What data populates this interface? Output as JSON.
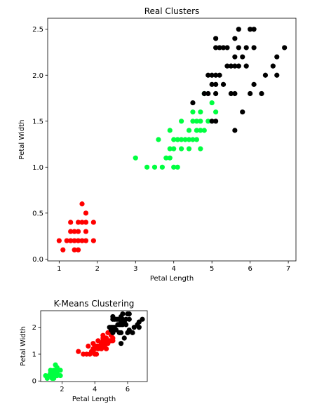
{
  "chart_data": [
    {
      "type": "scatter",
      "title": "Real Clusters",
      "xlabel": "Petal Length",
      "ylabel": "Petal Width",
      "xlim": [
        0.7,
        7.2
      ],
      "ylim": [
        -0.02,
        2.62
      ],
      "xticks": [
        1,
        2,
        3,
        4,
        5,
        6,
        7
      ],
      "xtick_labels": [
        "1",
        "2",
        "3",
        "4",
        "5",
        "6",
        "7"
      ],
      "yticks": [
        0.0,
        0.5,
        1.0,
        1.5,
        2.0,
        2.5
      ],
      "ytick_labels": [
        "0.0",
        "0.5",
        "1.0",
        "1.5",
        "2.0",
        "2.5"
      ],
      "grid": false,
      "series": [
        {
          "color": "#ff0000",
          "points": [
            [
              1.0,
              0.2
            ],
            [
              1.1,
              0.1
            ],
            [
              1.2,
              0.2
            ],
            [
              1.3,
              0.2
            ],
            [
              1.3,
              0.3
            ],
            [
              1.3,
              0.4
            ],
            [
              1.4,
              0.1
            ],
            [
              1.4,
              0.2
            ],
            [
              1.4,
              0.3
            ],
            [
              1.5,
              0.1
            ],
            [
              1.5,
              0.2
            ],
            [
              1.5,
              0.3
            ],
            [
              1.5,
              0.4
            ],
            [
              1.6,
              0.2
            ],
            [
              1.6,
              0.4
            ],
            [
              1.6,
              0.6
            ],
            [
              1.7,
              0.2
            ],
            [
              1.7,
              0.3
            ],
            [
              1.7,
              0.4
            ],
            [
              1.7,
              0.5
            ],
            [
              1.9,
              0.2
            ],
            [
              1.9,
              0.4
            ]
          ]
        },
        {
          "color": "#00ff40",
          "points": [
            [
              3.0,
              1.1
            ],
            [
              3.3,
              1.0
            ],
            [
              3.5,
              1.0
            ],
            [
              3.6,
              1.3
            ],
            [
              3.7,
              1.0
            ],
            [
              3.8,
              1.1
            ],
            [
              3.9,
              1.1
            ],
            [
              3.9,
              1.2
            ],
            [
              3.9,
              1.4
            ],
            [
              4.0,
              1.0
            ],
            [
              4.0,
              1.2
            ],
            [
              4.0,
              1.3
            ],
            [
              4.1,
              1.0
            ],
            [
              4.1,
              1.3
            ],
            [
              4.2,
              1.2
            ],
            [
              4.2,
              1.3
            ],
            [
              4.2,
              1.5
            ],
            [
              4.3,
              1.3
            ],
            [
              4.4,
              1.2
            ],
            [
              4.4,
              1.3
            ],
            [
              4.4,
              1.4
            ],
            [
              4.5,
              1.3
            ],
            [
              4.5,
              1.5
            ],
            [
              4.5,
              1.6
            ],
            [
              4.6,
              1.3
            ],
            [
              4.6,
              1.4
            ],
            [
              4.6,
              1.5
            ],
            [
              4.7,
              1.2
            ],
            [
              4.7,
              1.4
            ],
            [
              4.7,
              1.5
            ],
            [
              4.7,
              1.6
            ],
            [
              4.8,
              1.4
            ],
            [
              4.8,
              1.8
            ],
            [
              4.9,
              1.5
            ],
            [
              5.0,
              1.7
            ],
            [
              5.1,
              1.6
            ]
          ]
        },
        {
          "color": "#000000",
          "points": [
            [
              4.5,
              1.7
            ],
            [
              4.8,
              1.8
            ],
            [
              4.9,
              1.8
            ],
            [
              4.9,
              2.0
            ],
            [
              5.0,
              1.5
            ],
            [
              5.0,
              1.9
            ],
            [
              5.0,
              2.0
            ],
            [
              5.1,
              1.5
            ],
            [
              5.1,
              1.8
            ],
            [
              5.1,
              1.9
            ],
            [
              5.1,
              2.0
            ],
            [
              5.1,
              2.3
            ],
            [
              5.1,
              2.4
            ],
            [
              5.2,
              2.0
            ],
            [
              5.2,
              2.3
            ],
            [
              5.3,
              1.9
            ],
            [
              5.3,
              2.3
            ],
            [
              5.4,
              2.1
            ],
            [
              5.4,
              2.3
            ],
            [
              5.5,
              1.8
            ],
            [
              5.5,
              2.1
            ],
            [
              5.6,
              1.4
            ],
            [
              5.6,
              1.8
            ],
            [
              5.6,
              2.1
            ],
            [
              5.6,
              2.2
            ],
            [
              5.6,
              2.4
            ],
            [
              5.7,
              2.1
            ],
            [
              5.7,
              2.3
            ],
            [
              5.7,
              2.5
            ],
            [
              5.8,
              1.6
            ],
            [
              5.8,
              2.2
            ],
            [
              5.9,
              2.1
            ],
            [
              5.9,
              2.3
            ],
            [
              6.0,
              1.8
            ],
            [
              6.0,
              2.5
            ],
            [
              6.1,
              1.9
            ],
            [
              6.1,
              2.3
            ],
            [
              6.1,
              2.5
            ],
            [
              6.3,
              1.8
            ],
            [
              6.4,
              2.0
            ],
            [
              6.6,
              2.1
            ],
            [
              6.7,
              2.0
            ],
            [
              6.7,
              2.2
            ],
            [
              6.9,
              2.3
            ]
          ]
        }
      ]
    },
    {
      "type": "scatter",
      "title": "K-Means Clustering",
      "xlabel": "Petal Length",
      "ylabel": "Petal Width",
      "xlim": [
        0.7,
        7.2
      ],
      "ylim": [
        -0.02,
        2.62
      ],
      "xticks": [
        2,
        4,
        6
      ],
      "xtick_labels": [
        "2",
        "4",
        "6"
      ],
      "yticks": [
        0,
        1,
        2
      ],
      "ytick_labels": [
        "0",
        "1",
        "2"
      ],
      "grid": false,
      "series": [
        {
          "color": "#00ff40",
          "points": [
            [
              1.0,
              0.2
            ],
            [
              1.1,
              0.1
            ],
            [
              1.2,
              0.2
            ],
            [
              1.3,
              0.2
            ],
            [
              1.3,
              0.3
            ],
            [
              1.3,
              0.4
            ],
            [
              1.4,
              0.1
            ],
            [
              1.4,
              0.2
            ],
            [
              1.4,
              0.3
            ],
            [
              1.5,
              0.1
            ],
            [
              1.5,
              0.2
            ],
            [
              1.5,
              0.3
            ],
            [
              1.5,
              0.4
            ],
            [
              1.6,
              0.2
            ],
            [
              1.6,
              0.4
            ],
            [
              1.6,
              0.6
            ],
            [
              1.7,
              0.2
            ],
            [
              1.7,
              0.3
            ],
            [
              1.7,
              0.4
            ],
            [
              1.7,
              0.5
            ],
            [
              1.9,
              0.2
            ],
            [
              1.9,
              0.4
            ]
          ]
        },
        {
          "color": "#ff0000",
          "points": [
            [
              3.0,
              1.1
            ],
            [
              3.3,
              1.0
            ],
            [
              3.5,
              1.0
            ],
            [
              3.6,
              1.3
            ],
            [
              3.7,
              1.0
            ],
            [
              3.8,
              1.1
            ],
            [
              3.9,
              1.1
            ],
            [
              3.9,
              1.2
            ],
            [
              3.9,
              1.4
            ],
            [
              4.0,
              1.0
            ],
            [
              4.0,
              1.2
            ],
            [
              4.0,
              1.3
            ],
            [
              4.1,
              1.0
            ],
            [
              4.1,
              1.3
            ],
            [
              4.2,
              1.2
            ],
            [
              4.2,
              1.3
            ],
            [
              4.2,
              1.5
            ],
            [
              4.3,
              1.3
            ],
            [
              4.4,
              1.2
            ],
            [
              4.4,
              1.3
            ],
            [
              4.4,
              1.4
            ],
            [
              4.5,
              1.3
            ],
            [
              4.5,
              1.5
            ],
            [
              4.5,
              1.6
            ],
            [
              4.5,
              1.7
            ],
            [
              4.6,
              1.3
            ],
            [
              4.6,
              1.4
            ],
            [
              4.6,
              1.5
            ],
            [
              4.7,
              1.2
            ],
            [
              4.7,
              1.4
            ],
            [
              4.7,
              1.5
            ],
            [
              4.7,
              1.6
            ],
            [
              4.8,
              1.4
            ],
            [
              4.8,
              1.8
            ],
            [
              4.9,
              1.5
            ],
            [
              4.9,
              1.8
            ],
            [
              5.0,
              1.5
            ],
            [
              5.0,
              1.7
            ],
            [
              5.1,
              1.5
            ],
            [
              5.1,
              1.6
            ]
          ]
        },
        {
          "color": "#000000",
          "points": [
            [
              4.9,
              2.0
            ],
            [
              5.0,
              1.9
            ],
            [
              5.0,
              2.0
            ],
            [
              5.1,
              1.8
            ],
            [
              5.1,
              1.9
            ],
            [
              5.1,
              2.0
            ],
            [
              5.1,
              2.3
            ],
            [
              5.1,
              2.4
            ],
            [
              5.2,
              2.0
            ],
            [
              5.2,
              2.3
            ],
            [
              5.3,
              1.9
            ],
            [
              5.3,
              2.3
            ],
            [
              5.4,
              2.1
            ],
            [
              5.4,
              2.3
            ],
            [
              5.5,
              1.8
            ],
            [
              5.5,
              2.1
            ],
            [
              5.6,
              1.4
            ],
            [
              5.6,
              1.8
            ],
            [
              5.6,
              2.1
            ],
            [
              5.6,
              2.2
            ],
            [
              5.6,
              2.4
            ],
            [
              5.7,
              2.1
            ],
            [
              5.7,
              2.3
            ],
            [
              5.7,
              2.5
            ],
            [
              5.8,
              1.6
            ],
            [
              5.8,
              2.2
            ],
            [
              5.9,
              2.1
            ],
            [
              5.9,
              2.3
            ],
            [
              6.0,
              1.8
            ],
            [
              6.0,
              2.5
            ],
            [
              6.1,
              1.9
            ],
            [
              6.1,
              2.3
            ],
            [
              6.1,
              2.5
            ],
            [
              6.3,
              1.8
            ],
            [
              6.4,
              2.0
            ],
            [
              6.6,
              2.1
            ],
            [
              6.7,
              2.0
            ],
            [
              6.7,
              2.2
            ],
            [
              6.9,
              2.3
            ]
          ]
        }
      ]
    }
  ]
}
